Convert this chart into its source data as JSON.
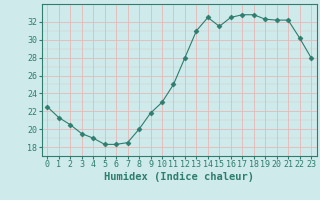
{
  "x": [
    0,
    1,
    2,
    3,
    4,
    5,
    6,
    7,
    8,
    9,
    10,
    11,
    12,
    13,
    14,
    15,
    16,
    17,
    18,
    19,
    20,
    21,
    22,
    23
  ],
  "y": [
    22.5,
    21.3,
    20.5,
    19.5,
    19.0,
    18.3,
    18.3,
    18.5,
    20.0,
    21.8,
    23.0,
    25.0,
    28.0,
    31.0,
    32.5,
    31.5,
    32.5,
    32.8,
    32.8,
    32.3,
    32.2,
    32.2,
    30.2,
    28.0
  ],
  "xlabel": "Humidex (Indice chaleur)",
  "ylim": [
    17,
    34
  ],
  "xlim": [
    -0.5,
    23.5
  ],
  "yticks": [
    18,
    20,
    22,
    24,
    26,
    28,
    30,
    32
  ],
  "xticks": [
    0,
    1,
    2,
    3,
    4,
    5,
    6,
    7,
    8,
    9,
    10,
    11,
    12,
    13,
    14,
    15,
    16,
    17,
    18,
    19,
    20,
    21,
    22,
    23
  ],
  "line_color": "#2e7d6e",
  "marker": "D",
  "marker_size": 2.5,
  "bg_color": "#ceeaea",
  "grid_hcolor": "#e8b8b8",
  "grid_vcolor": "#e8b8b8",
  "tick_fontsize": 6.0,
  "xlabel_fontsize": 7.5
}
